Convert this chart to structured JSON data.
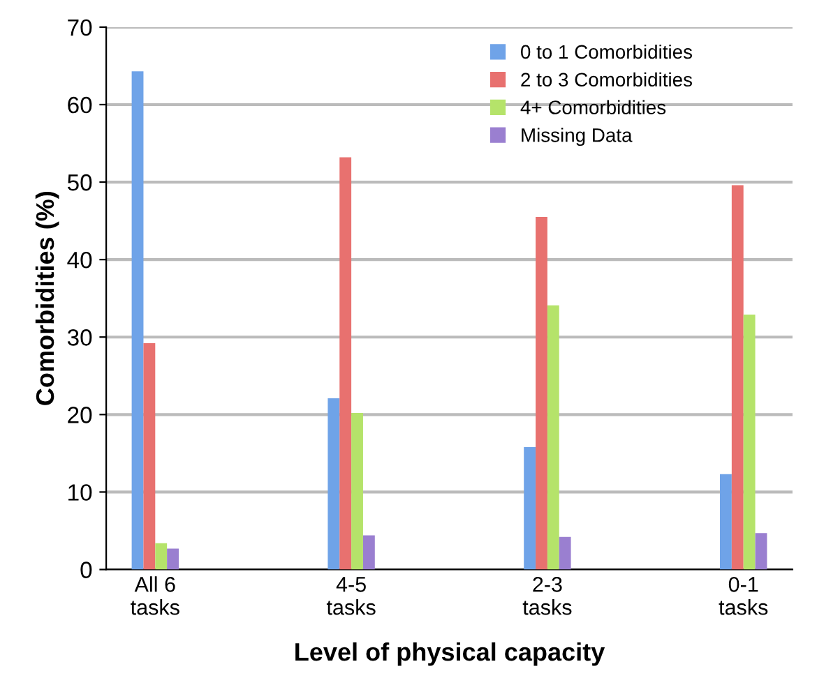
{
  "chart_data": {
    "type": "bar",
    "xlabel": "Level of physical capacity",
    "ylabel": "Comorbidities (%)",
    "categories": [
      "All 6\ntasks",
      "4-5\ntasks",
      "2-3\ntasks",
      "0-1\ntasks"
    ],
    "series": [
      {
        "name": "0 to 1 Comorbidities",
        "color": "#6fa3e8",
        "values": [
          64.3,
          22.1,
          15.8,
          12.3
        ]
      },
      {
        "name": "2 to 3 Comorbidities",
        "color": "#e8716f",
        "values": [
          29.2,
          53.2,
          45.5,
          49.6
        ]
      },
      {
        "name": "4+ Comorbidities",
        "color": "#b5e36a",
        "values": [
          3.4,
          20.2,
          34.1,
          32.9
        ]
      },
      {
        "name": "Missing Data",
        "color": "#9a7fd0",
        "values": [
          2.7,
          4.4,
          4.2,
          4.7
        ]
      }
    ],
    "ylim": [
      0,
      70
    ],
    "yticks": [
      0,
      10,
      20,
      30,
      40,
      50,
      60,
      70
    ],
    "grid": "y",
    "legend": "top right"
  }
}
